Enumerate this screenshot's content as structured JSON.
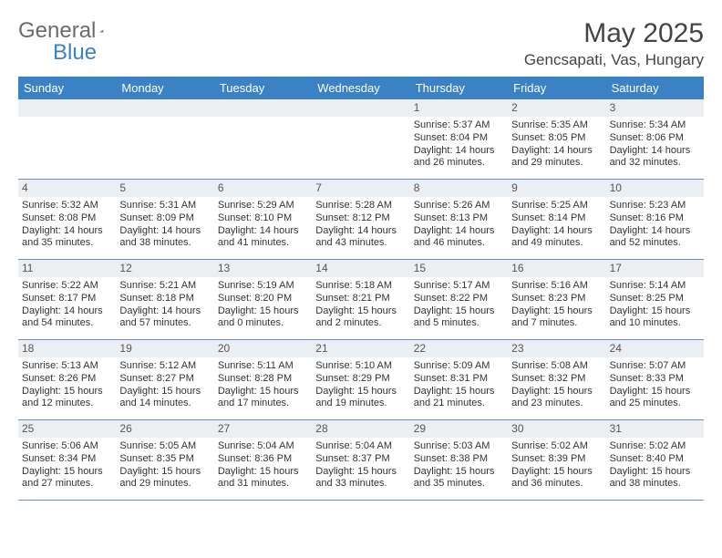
{
  "logo": {
    "general": "General",
    "blue": "Blue"
  },
  "title": "May 2025",
  "location": "Gencsapati, Vas, Hungary",
  "accent_color": "#3b82c4",
  "header_text_color": "#ffffff",
  "daynum_bg": "#eceff1",
  "cell_border_color": "#6b90b8",
  "weekdays": [
    "Sunday",
    "Monday",
    "Tuesday",
    "Wednesday",
    "Thursday",
    "Friday",
    "Saturday"
  ],
  "weeks": [
    [
      null,
      null,
      null,
      null,
      {
        "n": "1",
        "sr": "5:37 AM",
        "ss": "8:04 PM",
        "dl": "14 hours and 26 minutes."
      },
      {
        "n": "2",
        "sr": "5:35 AM",
        "ss": "8:05 PM",
        "dl": "14 hours and 29 minutes."
      },
      {
        "n": "3",
        "sr": "5:34 AM",
        "ss": "8:06 PM",
        "dl": "14 hours and 32 minutes."
      }
    ],
    [
      {
        "n": "4",
        "sr": "5:32 AM",
        "ss": "8:08 PM",
        "dl": "14 hours and 35 minutes."
      },
      {
        "n": "5",
        "sr": "5:31 AM",
        "ss": "8:09 PM",
        "dl": "14 hours and 38 minutes."
      },
      {
        "n": "6",
        "sr": "5:29 AM",
        "ss": "8:10 PM",
        "dl": "14 hours and 41 minutes."
      },
      {
        "n": "7",
        "sr": "5:28 AM",
        "ss": "8:12 PM",
        "dl": "14 hours and 43 minutes."
      },
      {
        "n": "8",
        "sr": "5:26 AM",
        "ss": "8:13 PM",
        "dl": "14 hours and 46 minutes."
      },
      {
        "n": "9",
        "sr": "5:25 AM",
        "ss": "8:14 PM",
        "dl": "14 hours and 49 minutes."
      },
      {
        "n": "10",
        "sr": "5:23 AM",
        "ss": "8:16 PM",
        "dl": "14 hours and 52 minutes."
      }
    ],
    [
      {
        "n": "11",
        "sr": "5:22 AM",
        "ss": "8:17 PM",
        "dl": "14 hours and 54 minutes."
      },
      {
        "n": "12",
        "sr": "5:21 AM",
        "ss": "8:18 PM",
        "dl": "14 hours and 57 minutes."
      },
      {
        "n": "13",
        "sr": "5:19 AM",
        "ss": "8:20 PM",
        "dl": "15 hours and 0 minutes."
      },
      {
        "n": "14",
        "sr": "5:18 AM",
        "ss": "8:21 PM",
        "dl": "15 hours and 2 minutes."
      },
      {
        "n": "15",
        "sr": "5:17 AM",
        "ss": "8:22 PM",
        "dl": "15 hours and 5 minutes."
      },
      {
        "n": "16",
        "sr": "5:16 AM",
        "ss": "8:23 PM",
        "dl": "15 hours and 7 minutes."
      },
      {
        "n": "17",
        "sr": "5:14 AM",
        "ss": "8:25 PM",
        "dl": "15 hours and 10 minutes."
      }
    ],
    [
      {
        "n": "18",
        "sr": "5:13 AM",
        "ss": "8:26 PM",
        "dl": "15 hours and 12 minutes."
      },
      {
        "n": "19",
        "sr": "5:12 AM",
        "ss": "8:27 PM",
        "dl": "15 hours and 14 minutes."
      },
      {
        "n": "20",
        "sr": "5:11 AM",
        "ss": "8:28 PM",
        "dl": "15 hours and 17 minutes."
      },
      {
        "n": "21",
        "sr": "5:10 AM",
        "ss": "8:29 PM",
        "dl": "15 hours and 19 minutes."
      },
      {
        "n": "22",
        "sr": "5:09 AM",
        "ss": "8:31 PM",
        "dl": "15 hours and 21 minutes."
      },
      {
        "n": "23",
        "sr": "5:08 AM",
        "ss": "8:32 PM",
        "dl": "15 hours and 23 minutes."
      },
      {
        "n": "24",
        "sr": "5:07 AM",
        "ss": "8:33 PM",
        "dl": "15 hours and 25 minutes."
      }
    ],
    [
      {
        "n": "25",
        "sr": "5:06 AM",
        "ss": "8:34 PM",
        "dl": "15 hours and 27 minutes."
      },
      {
        "n": "26",
        "sr": "5:05 AM",
        "ss": "8:35 PM",
        "dl": "15 hours and 29 minutes."
      },
      {
        "n": "27",
        "sr": "5:04 AM",
        "ss": "8:36 PM",
        "dl": "15 hours and 31 minutes."
      },
      {
        "n": "28",
        "sr": "5:04 AM",
        "ss": "8:37 PM",
        "dl": "15 hours and 33 minutes."
      },
      {
        "n": "29",
        "sr": "5:03 AM",
        "ss": "8:38 PM",
        "dl": "15 hours and 35 minutes."
      },
      {
        "n": "30",
        "sr": "5:02 AM",
        "ss": "8:39 PM",
        "dl": "15 hours and 36 minutes."
      },
      {
        "n": "31",
        "sr": "5:02 AM",
        "ss": "8:40 PM",
        "dl": "15 hours and 38 minutes."
      }
    ]
  ],
  "labels": {
    "sunrise": "Sunrise:",
    "sunset": "Sunset:",
    "daylight": "Daylight:"
  }
}
